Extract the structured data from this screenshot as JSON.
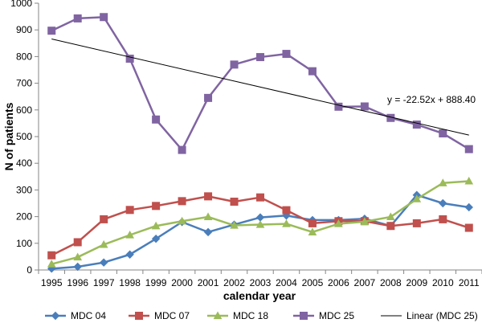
{
  "chart_data": {
    "type": "line",
    "xlabel": "calendar year",
    "ylabel": "N of patients",
    "ylim": [
      0,
      1000
    ],
    "yticks": [
      0,
      100,
      200,
      300,
      400,
      500,
      600,
      700,
      800,
      900,
      1000
    ],
    "categories": [
      "1995",
      "1996",
      "1997",
      "1998",
      "1999",
      "2000",
      "2001",
      "2002",
      "2003",
      "2004",
      "2005",
      "2006",
      "2007",
      "2008",
      "2009",
      "2010",
      "2011"
    ],
    "grid": false,
    "legend": "bottom",
    "series": [
      {
        "name": "MDC 04",
        "color": "#4a7ebb",
        "marker": "diamond",
        "values": [
          5,
          12,
          28,
          58,
          117,
          180,
          142,
          170,
          197,
          204,
          187,
          187,
          192,
          165,
          281,
          250,
          235
        ]
      },
      {
        "name": "MDC 07",
        "color": "#c0504d",
        "marker": "square",
        "values": [
          55,
          104,
          190,
          225,
          240,
          258,
          276,
          256,
          272,
          224,
          175,
          183,
          183,
          165,
          175,
          190,
          158
        ]
      },
      {
        "name": "MDC 18",
        "color": "#9bbb59",
        "marker": "triangle",
        "values": [
          22,
          48,
          95,
          131,
          165,
          183,
          199,
          167,
          170,
          173,
          142,
          173,
          181,
          199,
          266,
          326,
          333
        ]
      },
      {
        "name": "MDC 25",
        "color": "#8064a2",
        "marker": "square",
        "values": [
          897,
          943,
          948,
          792,
          564,
          450,
          645,
          770,
          798,
          810,
          745,
          612,
          613,
          570,
          545,
          512,
          453
        ]
      }
    ],
    "trendline": {
      "name": "Linear (MDC 25)",
      "color": "#000000",
      "equation": "y = -22.52x + 888.40",
      "slope": -22.52,
      "intercept": 888.4
    }
  }
}
